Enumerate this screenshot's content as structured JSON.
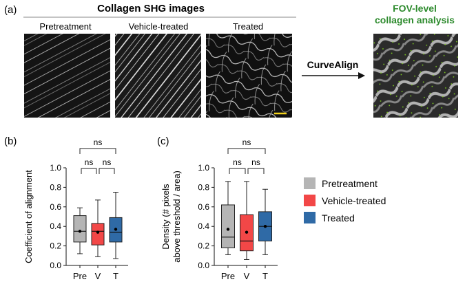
{
  "panel_a": {
    "label": "(a)",
    "title": "Collagen SHG images",
    "images": [
      {
        "caption": "Pretreatment"
      },
      {
        "caption": "Vehicle-treated"
      },
      {
        "caption": "Treated"
      }
    ],
    "method_label": "CurveAlign",
    "output_title_line1": "FOV-level",
    "output_title_line2": "collagen analysis",
    "colors": {
      "output_title": "#2e8b2e",
      "scale_bar": "#f2d21b",
      "overlay_points": "#7fd11f"
    }
  },
  "legend": [
    {
      "label": "Pretreatment",
      "color": "#b5b5b5"
    },
    {
      "label": "Vehicle-treated",
      "color": "#f24747"
    },
    {
      "label": "Treated",
      "color": "#2f6aa6"
    }
  ],
  "chart_data": [
    {
      "type": "box",
      "panel_label": "(b)",
      "ylabel": "Coefficient of alignment",
      "ylim": [
        0.0,
        1.0
      ],
      "yticks": [
        "0.0",
        "0.2",
        "0.4",
        "0.6",
        "0.8",
        "1.0"
      ],
      "categories": [
        "Pre",
        "V",
        "T"
      ],
      "series": [
        {
          "name": "Pretreatment",
          "color": "#b5b5b5",
          "whisker_low": 0.12,
          "q1": 0.24,
          "median": 0.35,
          "q3": 0.51,
          "whisker_high": 0.59,
          "mean": 0.35
        },
        {
          "name": "Vehicle-treated",
          "color": "#f24747",
          "whisker_low": 0.09,
          "q1": 0.21,
          "median": 0.35,
          "q3": 0.43,
          "whisker_high": 0.67,
          "mean": 0.34
        },
        {
          "name": "Treated",
          "color": "#2f6aa6",
          "whisker_low": 0.07,
          "q1": 0.24,
          "median": 0.34,
          "q3": 0.49,
          "whisker_high": 0.75,
          "mean": 0.37
        }
      ],
      "significance": [
        {
          "from": 0,
          "to": 1,
          "label": "ns",
          "level": 1
        },
        {
          "from": 1,
          "to": 2,
          "label": "ns",
          "level": 1
        },
        {
          "from": 0,
          "to": 2,
          "label": "ns",
          "level": 2
        }
      ]
    },
    {
      "type": "box",
      "panel_label": "(c)",
      "ylabel_line1": "Density (# pixels",
      "ylabel_line2": "above threshold / area)",
      "ylim": [
        0.0,
        1.0
      ],
      "yticks": [
        "0.0",
        "0.2",
        "0.4",
        "0.6",
        "0.8",
        "1.0"
      ],
      "categories": [
        "Pre",
        "V",
        "T"
      ],
      "series": [
        {
          "name": "Pretreatment",
          "color": "#b5b5b5",
          "whisker_low": 0.11,
          "q1": 0.18,
          "median": 0.29,
          "q3": 0.62,
          "whisker_high": 0.86,
          "mean": 0.37
        },
        {
          "name": "Vehicle-treated",
          "color": "#f24747",
          "whisker_low": 0.06,
          "q1": 0.15,
          "median": 0.25,
          "q3": 0.52,
          "whisker_high": 0.86,
          "mean": 0.34
        },
        {
          "name": "Treated",
          "color": "#2f6aa6",
          "whisker_low": 0.11,
          "q1": 0.25,
          "median": 0.4,
          "q3": 0.55,
          "whisker_high": 0.78,
          "mean": 0.4
        }
      ],
      "significance": [
        {
          "from": 0,
          "to": 1,
          "label": "ns",
          "level": 1
        },
        {
          "from": 1,
          "to": 2,
          "label": "ns",
          "level": 1
        },
        {
          "from": 0,
          "to": 2,
          "label": "ns",
          "level": 2
        }
      ]
    }
  ]
}
